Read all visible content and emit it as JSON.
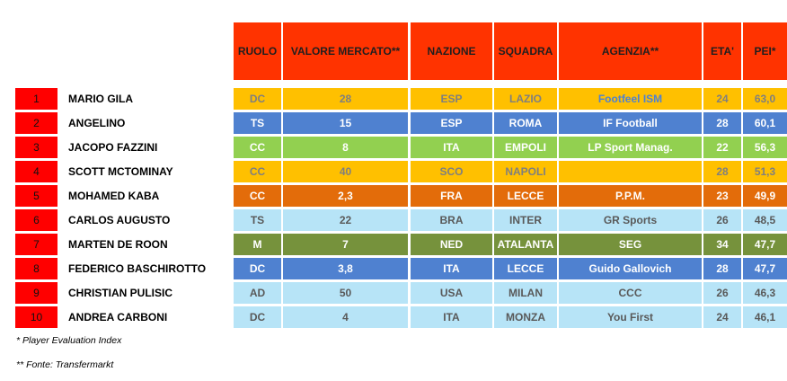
{
  "headers": {
    "ruolo": "RUOLO",
    "valore": "VALORE MERCATO**",
    "nazione": "NAZIONE",
    "squadra": "SQUADRA",
    "agenzia": "AGENZIA**",
    "eta": "ETA'",
    "pei": "PEI*"
  },
  "colors": {
    "header_bg": "#ff3300",
    "rank_bg": "#ff0000",
    "yellow": "#ffc000",
    "blue": "#4f81d0",
    "green": "#92d050",
    "orange": "#e36c0a",
    "lightblue": "#b7e4f7",
    "olive": "#76923c"
  },
  "rows": [
    {
      "rank": "1",
      "name": "MARIO GILA",
      "ruolo": "DC",
      "valore": "28",
      "nazione": "ESP",
      "squadra": "LAZIO",
      "agenzia": "Footfeel ISM",
      "eta": "24",
      "pei": "63,0",
      "color": "#ffc000",
      "text_color": "#7f7f7f",
      "alt_color": "#4f81d0"
    },
    {
      "rank": "2",
      "name": "ANGELINO",
      "ruolo": "TS",
      "valore": "15",
      "nazione": "ESP",
      "squadra": "ROMA",
      "agenzia": "IF Football",
      "eta": "28",
      "pei": "60,1",
      "color": "#4f81d0",
      "text_color": "#ffffff"
    },
    {
      "rank": "3",
      "name": "JACOPO FAZZINI",
      "ruolo": "CC",
      "valore": "8",
      "nazione": "ITA",
      "squadra": "EMPOLI",
      "agenzia": "LP Sport Manag.",
      "eta": "22",
      "pei": "56,3",
      "color": "#92d050",
      "text_color": "#ffffff"
    },
    {
      "rank": "4",
      "name": "SCOTT MCTOMINAY",
      "ruolo": "CC",
      "valore": "40",
      "nazione": "SCO",
      "squadra": "NAPOLI",
      "agenzia": "",
      "eta": "28",
      "pei": "51,3",
      "color": "#ffc000",
      "text_color": "#7f7f7f"
    },
    {
      "rank": "5",
      "name": "MOHAMED KABA",
      "ruolo": "CC",
      "valore": "2,3",
      "nazione": "FRA",
      "squadra": "LECCE",
      "agenzia": "P.P.M.",
      "eta": "23",
      "pei": "49,9",
      "color": "#e36c0a",
      "text_color": "#ffffff"
    },
    {
      "rank": "6",
      "name": "CARLOS AUGUSTO",
      "ruolo": "TS",
      "valore": "22",
      "nazione": "BRA",
      "squadra": "INTER",
      "agenzia": "GR Sports",
      "eta": "26",
      "pei": "48,5",
      "color": "#b7e4f7",
      "text_color": "#595959"
    },
    {
      "rank": "7",
      "name": "MARTEN DE ROON",
      "ruolo": "M",
      "valore": "7",
      "nazione": "NED",
      "squadra": "ATALANTA",
      "agenzia": "SEG",
      "eta": "34",
      "pei": "47,7",
      "color": "#76923c",
      "text_color": "#ffffff"
    },
    {
      "rank": "8",
      "name": "FEDERICO BASCHIROTTO",
      "ruolo": "DC",
      "valore": "3,8",
      "nazione": "ITA",
      "squadra": "LECCE",
      "agenzia": "Guido Gallovich",
      "eta": "28",
      "pei": "47,7",
      "color": "#4f81d0",
      "text_color": "#ffffff"
    },
    {
      "rank": "9",
      "name": "CHRISTIAN PULISIC",
      "ruolo": "AD",
      "valore": "50",
      "nazione": "USA",
      "squadra": "MILAN",
      "agenzia": "CCC",
      "eta": "26",
      "pei": "46,3",
      "color": "#b7e4f7",
      "text_color": "#595959"
    },
    {
      "rank": "10",
      "name": "ANDREA CARBONI",
      "ruolo": "DC",
      "valore": "4",
      "nazione": "ITA",
      "squadra": "MONZA",
      "agenzia": "You First",
      "eta": "24",
      "pei": "46,1",
      "color": "#b7e4f7",
      "text_color": "#595959"
    }
  ],
  "footnotes": {
    "pei": "* Player Evaluation Index",
    "fonte": "** Fonte: Transfermarkt"
  }
}
